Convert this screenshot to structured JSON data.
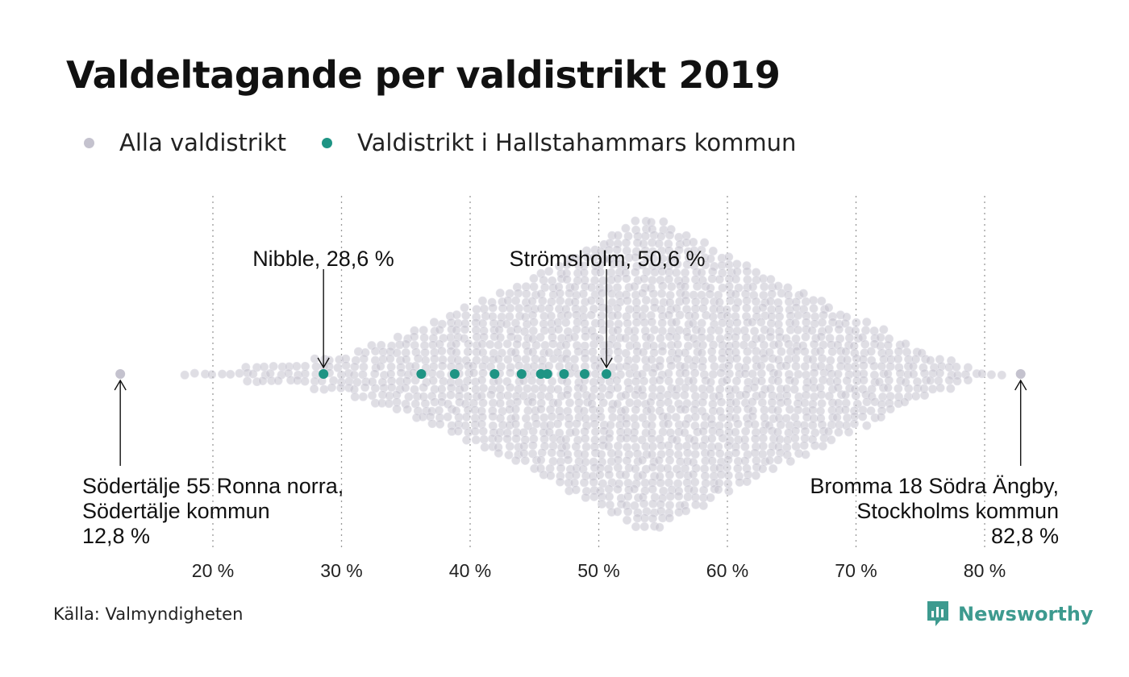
{
  "title": "Valdeltagande per valdistrikt 2019",
  "legend": {
    "items": [
      {
        "label": "Alla valdistrikt",
        "color": "#c4c2ce"
      },
      {
        "label": "Valdistrikt i Hallstahammars kommun",
        "color": "#1e9484"
      }
    ]
  },
  "chart_data": {
    "type": "scatter",
    "subtype": "beeswarm",
    "x_unit": "%",
    "xlim": [
      10,
      85
    ],
    "x_ticks": [
      20,
      30,
      40,
      50,
      60,
      70,
      80
    ],
    "x_tick_labels": [
      "20 %",
      "30 %",
      "40 %",
      "50 %",
      "60 %",
      "70 %",
      "80 %"
    ],
    "grid": "vertical dotted",
    "series": [
      {
        "name": "Alla valdistrikt",
        "color": "#c4c2ce",
        "min": 12.8,
        "max": 82.8,
        "peak": 53.8
      },
      {
        "name": "Valdistrikt i Hallstahammars kommun",
        "color": "#1e9484",
        "values": [
          28.6,
          36.2,
          38.8,
          41.9,
          44.0,
          45.5,
          46.0,
          47.3,
          48.9,
          50.6
        ]
      }
    ],
    "annotations": [
      {
        "lines": [
          "Nibble, 28,6 %"
        ],
        "x": 28.6
      },
      {
        "lines": [
          "Strömsholm, 50,6 %"
        ],
        "x": 50.6
      },
      {
        "lines": [
          "Södertälje 55 Ronna norra,",
          "Södertälje kommun",
          "12,8 %"
        ],
        "x": 12.8
      },
      {
        "lines": [
          "Bromma 18 Södra Ängby,",
          "Stockholms kommun",
          "82,8 %"
        ],
        "x": 82.8
      }
    ]
  },
  "source": "Källa: Valmyndigheten",
  "brand": {
    "name": "Newsworthy",
    "color": "#3d9a8f",
    "icon": "newsworthy-logo-icon"
  }
}
